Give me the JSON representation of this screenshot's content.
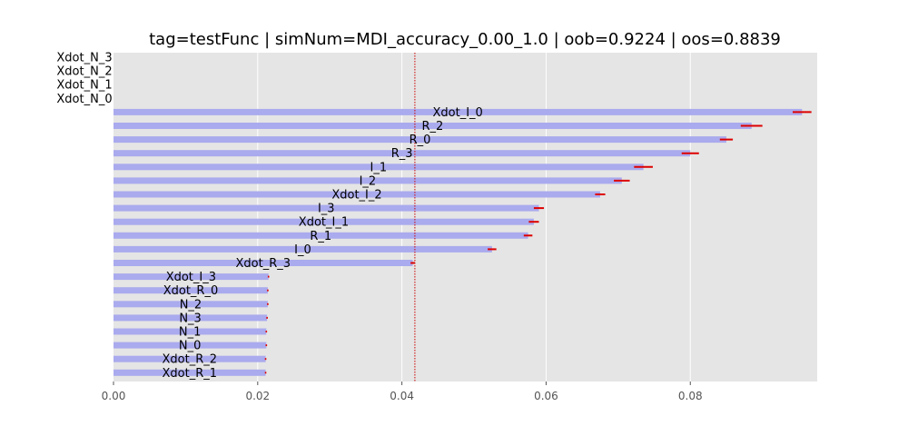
{
  "chart_data": {
    "type": "bar",
    "orientation": "horizontal",
    "title": "tag=testFunc | simNum=MDI_accuracy_0.00_1.0 | oob=0.9224 | oos=0.8839",
    "xlabel": "",
    "ylabel": "",
    "xlim": [
      0.0,
      0.0976
    ],
    "xticks": [
      0.0,
      0.02,
      0.04,
      0.06,
      0.08
    ],
    "xtick_labels": [
      "0.00",
      "0.02",
      "0.04",
      "0.06",
      "0.08"
    ],
    "grid": true,
    "reference_line": {
      "x": 0.0418,
      "style": "dotted",
      "color": "#cc0000"
    },
    "categories": [
      "Xdot_N_3",
      "Xdot_N_2",
      "Xdot_N_1",
      "Xdot_N_0",
      "Xdot_I_0",
      "R_2",
      "R_0",
      "R_3",
      "I_1",
      "I_2",
      "Xdot_I_2",
      "I_3",
      "Xdot_I_1",
      "R_1",
      "I_0",
      "Xdot_R_3",
      "Xdot_I_3",
      "Xdot_R_0",
      "N_2",
      "N_3",
      "N_1",
      "N_0",
      "Xdot_R_2",
      "Xdot_R_1"
    ],
    "values": [
      0,
      0,
      0,
      0,
      0.0955,
      0.0885,
      0.085,
      0.08,
      0.0735,
      0.0705,
      0.0675,
      0.059,
      0.0583,
      0.0575,
      0.0525,
      0.0415,
      0.0215,
      0.0214,
      0.0214,
      0.0213,
      0.0212,
      0.0212,
      0.0211,
      0.0211
    ],
    "errors": [
      0,
      0,
      0,
      0,
      0.0013,
      0.0015,
      0.0009,
      0.0012,
      0.0013,
      0.0011,
      0.0007,
      0.0007,
      0.0007,
      0.0006,
      0.0006,
      0.0003,
      0.0001,
      0.0001,
      0.0001,
      0.0001,
      0.0001,
      0.0001,
      0.0001,
      0.0001
    ],
    "bar_color": "#aaaaee",
    "error_color": "#dd0000",
    "background_color": "#e5e5e5",
    "grid_color": "#ffffff"
  }
}
